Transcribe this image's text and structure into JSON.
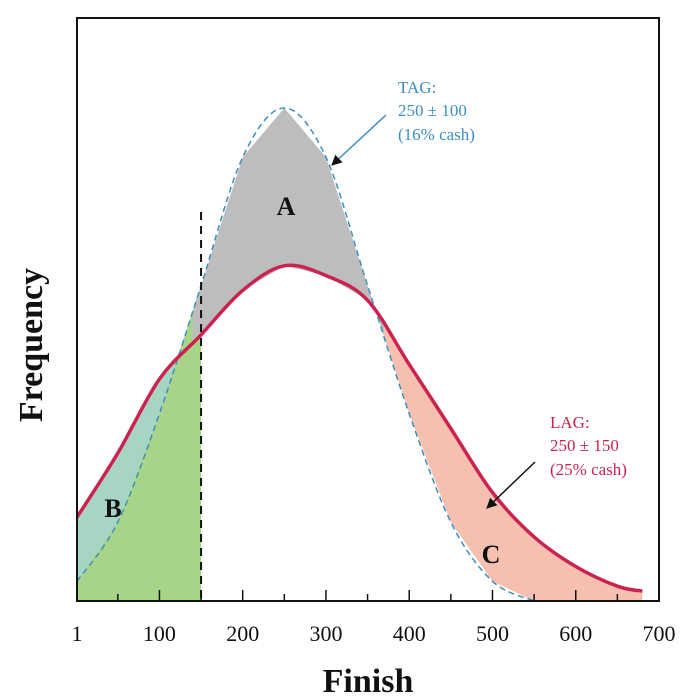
{
  "chart_data": {
    "type": "area",
    "title": "",
    "xlabel": "Finish",
    "ylabel": "Frequency",
    "xlim": [
      1,
      700
    ],
    "ylim": [
      0,
      1
    ],
    "x_ticks": [
      1,
      100,
      200,
      300,
      400,
      500,
      600,
      700
    ],
    "x_tick_labels": [
      "1",
      "100",
      "200",
      "300",
      "400",
      "500",
      "600",
      "700"
    ],
    "cutoff_x": 150,
    "series": [
      {
        "name": "TAG",
        "color": "#3a8fc0",
        "style": "dashed",
        "x": [
          1,
          50,
          100,
          150,
          200,
          250,
          300,
          350,
          400,
          450,
          500,
          550
        ],
        "values": [
          0.04,
          0.16,
          0.38,
          0.64,
          0.9,
          1.0,
          0.9,
          0.64,
          0.38,
          0.16,
          0.04,
          0.0
        ]
      },
      {
        "name": "LAG",
        "color": "#cc2250",
        "style": "solid",
        "x": [
          1,
          50,
          100,
          150,
          200,
          250,
          300,
          350,
          400,
          450,
          500,
          550,
          600,
          650,
          680
        ],
        "values": [
          0.17,
          0.3,
          0.45,
          0.54,
          0.63,
          0.68,
          0.66,
          0.61,
          0.48,
          0.35,
          0.22,
          0.13,
          0.07,
          0.03,
          0.02
        ]
      }
    ],
    "regions": [
      {
        "label": "A",
        "color": "#bdbdbd"
      },
      {
        "label": "B",
        "color": "#a8d48a"
      },
      {
        "label": "C",
        "color": "#f6c0b0"
      }
    ],
    "annotations": [
      {
        "lines": [
          "TAG:",
          "250 ± 100",
          "(16% cash)"
        ],
        "color": "#3a8fc0"
      },
      {
        "lines": [
          "LAG:",
          "250 ± 150",
          "(25% cash)"
        ],
        "color": "#cc2250"
      }
    ]
  }
}
